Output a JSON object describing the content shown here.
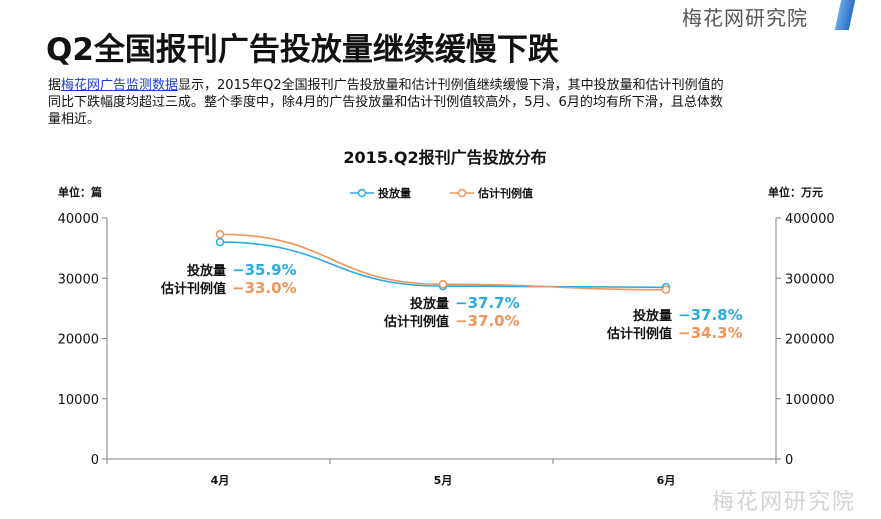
{
  "brand": "梅花网研究院",
  "page_title": "Q2全国报刊广告投放量继续缓慢下跌",
  "description": {
    "prefix": "据",
    "link_text": "梅花网广告监测数据",
    "text_line1_rest": "显示，2015年Q2全国报刊广告投放量和估计刊例值继续缓慢下滑，其中投放量和估计刊例值的",
    "text_line2": "同比下跌幅度均超过三成。整个季度中，除4月的广告投放量和估计刊例值较高外，5月、6月的均有所下滑，且总体数",
    "text_line3": "量相近。"
  },
  "watermark": "梅花网研究院",
  "colors": {
    "volume": "#29abe2",
    "value": "#f0955a",
    "axis": "#7f7f7f"
  },
  "chart_data": {
    "type": "line",
    "title": "2015.Q2报刊广告投放分布",
    "categories": [
      "4月",
      "5月",
      "6月"
    ],
    "left_unit": "单位：篇",
    "right_unit": "单位：万元",
    "ylim_left": [
      0,
      40000
    ],
    "ylim_right": [
      0,
      400000
    ],
    "yticks_left": [
      "0",
      "10000",
      "20000",
      "30000",
      "40000"
    ],
    "yticks_right": [
      "0",
      "100000",
      "200000",
      "300000",
      "400000"
    ],
    "legend_position": "top-center",
    "grid": false,
    "series": [
      {
        "name": "投放量",
        "axis": "left",
        "values": [
          36000,
          28700,
          28500
        ]
      },
      {
        "name": "估计刊例值",
        "axis": "right",
        "values": [
          373000,
          290000,
          281000
        ]
      }
    ],
    "annotations": [
      {
        "label_volume": "投放量",
        "volume_change": "−35.9%",
        "label_value": "估计刊例值",
        "value_change": "−33.0%"
      },
      {
        "label_volume": "投放量",
        "volume_change": "−37.7%",
        "label_value": "估计刊例值",
        "value_change": "−37.0%"
      },
      {
        "label_volume": "投放量",
        "volume_change": "−37.8%",
        "label_value": "估计刊例值",
        "value_change": "−34.3%"
      }
    ]
  }
}
